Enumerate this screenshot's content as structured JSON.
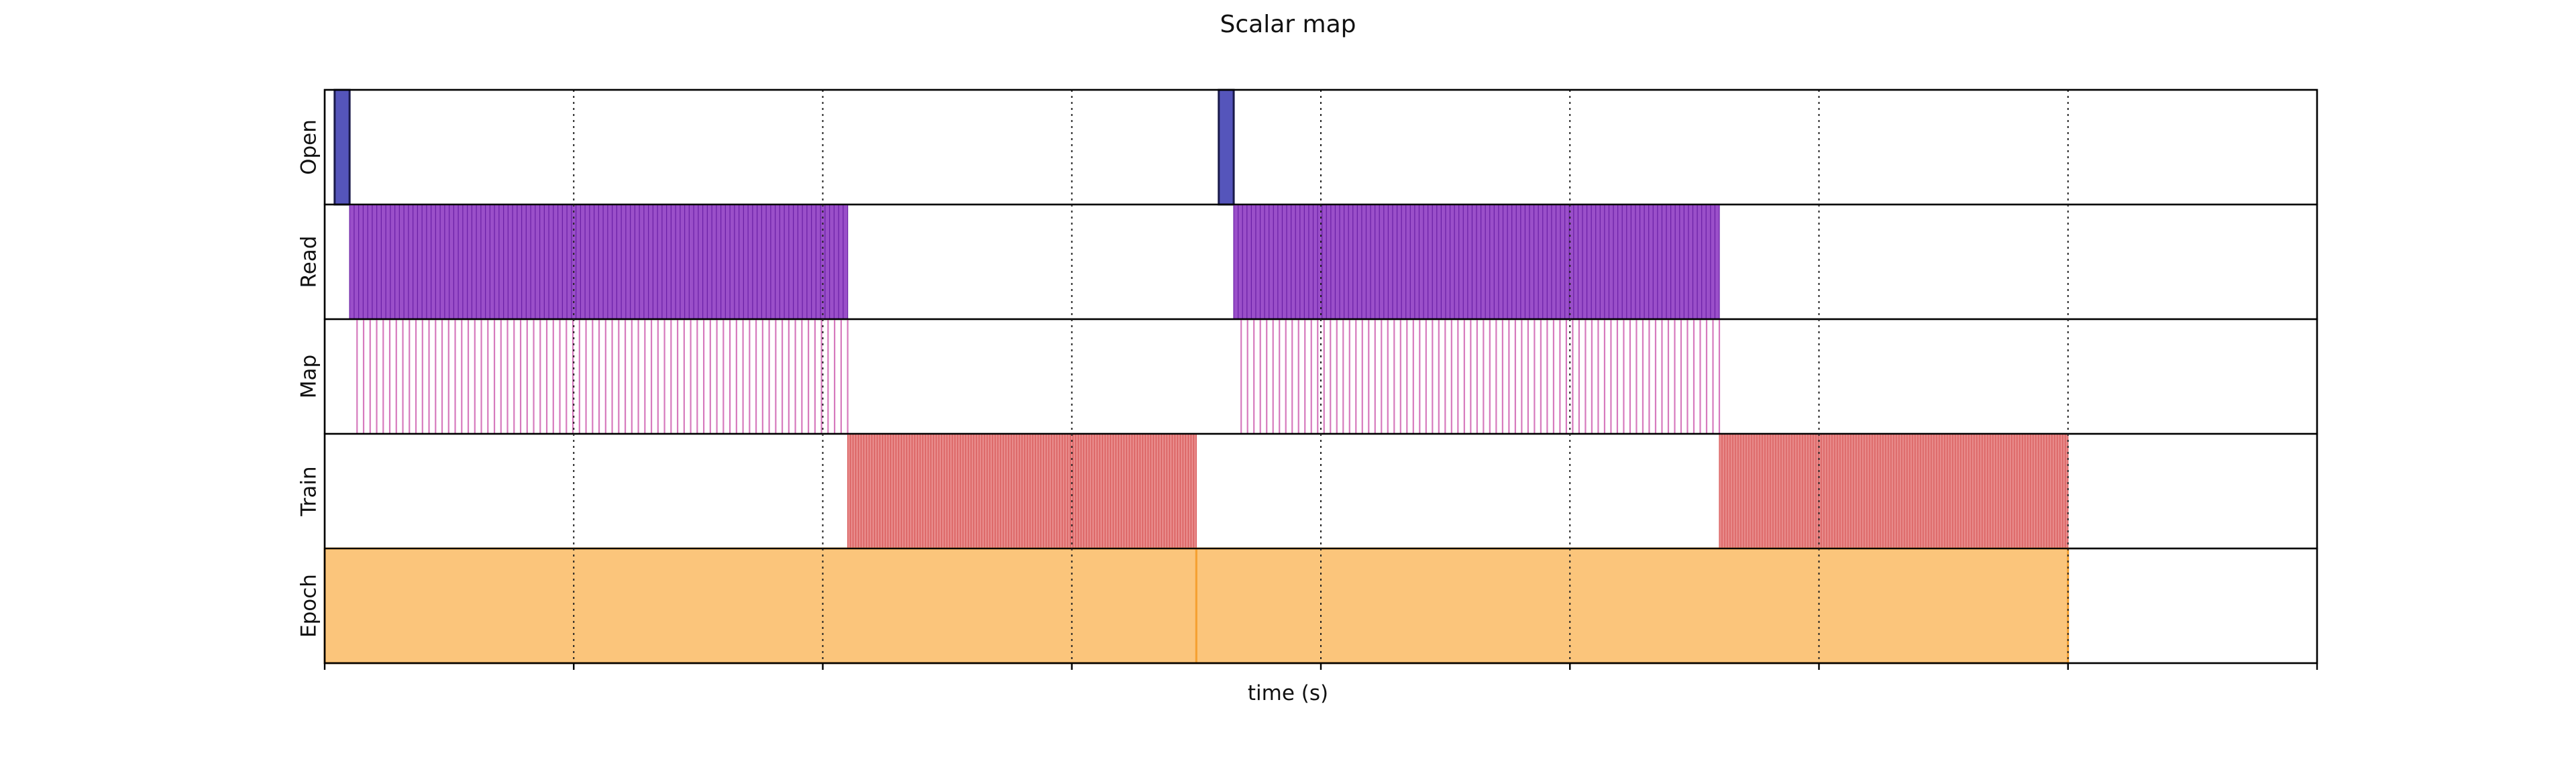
{
  "chart_data": {
    "type": "timeline",
    "title": "Scalar map",
    "xlabel": "time (s)",
    "ylabel": "",
    "xlim": [
      0,
      8
    ],
    "x_ticks": [
      0,
      1,
      2,
      3,
      4,
      5,
      6,
      7,
      8
    ],
    "x_tick_labels": [],
    "grid": true,
    "grid_style": "dotted-vertical",
    "lanes": [
      {
        "name": "Open",
        "color": "#5555bb",
        "edge_color": "#1a1a4a",
        "style": "filled",
        "intervals": [
          [
            0.04,
            0.1
          ],
          [
            3.59,
            3.65
          ]
        ]
      },
      {
        "name": "Read",
        "color": "#9a4fc9",
        "edge_color": "#6a1fa6",
        "style": "dense-bars",
        "clusters": [
          {
            "start": 0.1,
            "end": 2.1,
            "count": 110
          },
          {
            "start": 3.65,
            "end": 5.6,
            "count": 110
          }
        ]
      },
      {
        "name": "Map",
        "color": "#d67abd",
        "style": "spikes",
        "clusters": [
          {
            "start": 0.13,
            "end": 2.1,
            "count": 75
          },
          {
            "start": 3.68,
            "end": 5.6,
            "count": 75
          }
        ]
      },
      {
        "name": "Train",
        "color": "#e88a8a",
        "edge_color": "#d85a5a",
        "style": "dense-bars",
        "clusters": [
          {
            "start": 2.1,
            "end": 3.5,
            "count": 130
          },
          {
            "start": 5.6,
            "end": 7.0,
            "count": 130
          }
        ]
      },
      {
        "name": "Epoch",
        "color": "#fbc57b",
        "edge_color": "#f5a030",
        "style": "filled",
        "intervals": [
          [
            0.0,
            3.5
          ],
          [
            3.5,
            7.0
          ]
        ]
      }
    ]
  }
}
